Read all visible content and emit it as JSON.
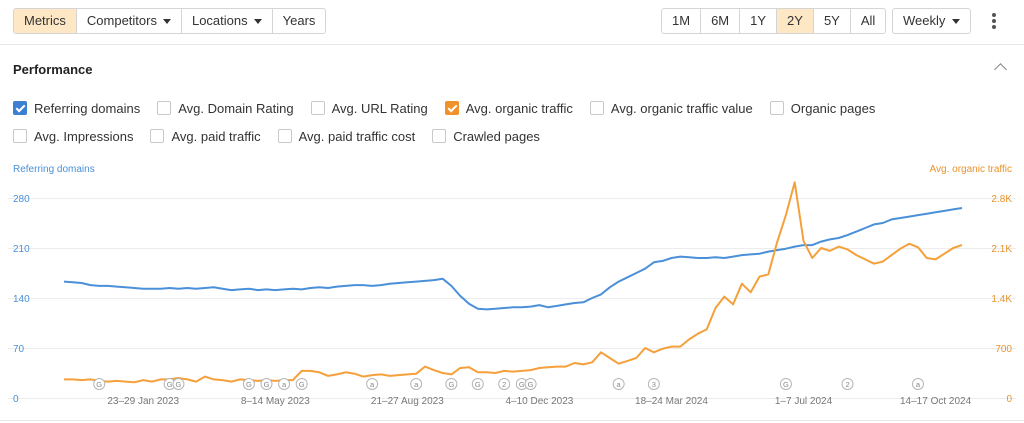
{
  "toolbar": {
    "view_tabs": [
      "Metrics",
      "Competitors",
      "Locations",
      "Years"
    ],
    "active_view": "Metrics",
    "range_tabs": [
      "1M",
      "6M",
      "1Y",
      "2Y",
      "5Y",
      "All"
    ],
    "active_range": "2Y",
    "interval": "Weekly"
  },
  "panel": {
    "title": "Performance",
    "checkboxes_row1": [
      {
        "label": "Referring domains",
        "checked": true,
        "color": "#3d7fd0"
      },
      {
        "label": "Avg. Domain Rating",
        "checked": false
      },
      {
        "label": "Avg. URL Rating",
        "checked": false
      },
      {
        "label": "Avg. organic traffic",
        "checked": true,
        "color": "#f0922b"
      },
      {
        "label": "Avg. organic traffic value",
        "checked": false
      },
      {
        "label": "Organic pages",
        "checked": false
      }
    ],
    "checkboxes_row2": [
      {
        "label": "Avg. Impressions",
        "checked": false
      },
      {
        "label": "Avg. paid traffic",
        "checked": false
      },
      {
        "label": "Avg. paid traffic cost",
        "checked": false
      },
      {
        "label": "Crawled pages",
        "checked": false
      }
    ]
  },
  "colors": {
    "blue": "#4a90d9",
    "orange": "#f5a03a",
    "grid": "#ececec",
    "axis_blue": "#4a90d9",
    "axis_orange": "#e8922c"
  },
  "chart_data": {
    "type": "line",
    "left_axis_label": "Referring domains",
    "right_axis_label": "Avg. organic traffic",
    "left_ticks": [
      "0",
      "70",
      "140",
      "210",
      "280"
    ],
    "right_ticks": [
      "0",
      "700",
      "1.4K",
      "2.1K",
      "2.8K"
    ],
    "left_ylim": [
      0,
      280
    ],
    "right_ylim": [
      0,
      2800
    ],
    "x_labels": [
      "23–29 Jan 2023",
      "8–14 May 2023",
      "21–27 Aug 2023",
      "4–10 Dec 2023",
      "18–24 Mar 2024",
      "1–7 Jul 2024",
      "14–17 Oct 2024"
    ],
    "x_label_weeks": [
      9,
      24,
      39,
      54,
      69,
      84,
      99
    ],
    "weeks": 103,
    "series": [
      {
        "name": "Referring domains",
        "axis": "left",
        "values": [
          163,
          162,
          161,
          158,
          157,
          157,
          156,
          155,
          154,
          153,
          153,
          153,
          154,
          153,
          154,
          153,
          154,
          155,
          153,
          151,
          152,
          153,
          151,
          152,
          151,
          152,
          153,
          152,
          154,
          155,
          154,
          156,
          157,
          158,
          158,
          157,
          158,
          160,
          161,
          162,
          163,
          164,
          165,
          167,
          157,
          143,
          132,
          125,
          124,
          125,
          126,
          127,
          127,
          128,
          130,
          127,
          129,
          131,
          133,
          134,
          140,
          145,
          155,
          163,
          169,
          175,
          181,
          190,
          192,
          196,
          198,
          197,
          196,
          196,
          197,
          196,
          198,
          200,
          201,
          202,
          205,
          207,
          209,
          212,
          214,
          214,
          219,
          222,
          224,
          228,
          233,
          238,
          243,
          245,
          250,
          252,
          254,
          256,
          258,
          260,
          262,
          264,
          266
        ]
      },
      {
        "name": "Avg. organic traffic",
        "axis": "right",
        "values": [
          260,
          260,
          250,
          260,
          240,
          230,
          240,
          230,
          220,
          250,
          230,
          260,
          260,
          280,
          260,
          230,
          300,
          260,
          250,
          230,
          260,
          250,
          240,
          250,
          240,
          250,
          250,
          380,
          380,
          360,
          310,
          330,
          360,
          340,
          300,
          320,
          330,
          310,
          320,
          330,
          340,
          440,
          390,
          350,
          330,
          420,
          430,
          360,
          360,
          350,
          380,
          370,
          380,
          390,
          420,
          430,
          440,
          440,
          490,
          470,
          500,
          640,
          560,
          480,
          520,
          560,
          700,
          640,
          690,
          720,
          720,
          820,
          900,
          960,
          1260,
          1420,
          1310,
          1600,
          1480,
          1700,
          1730,
          2180,
          2560,
          3020,
          2200,
          1960,
          2100,
          2060,
          2120,
          2080,
          2000,
          1940,
          1880,
          1910,
          2000,
          2090,
          2160,
          2110,
          1960,
          1940,
          2020,
          2100,
          2140
        ]
      }
    ],
    "annotation_markers": [
      {
        "label": "G",
        "week": 4
      },
      {
        "label": "G",
        "week": 12
      },
      {
        "label": "G",
        "week": 13
      },
      {
        "label": "G",
        "week": 21
      },
      {
        "label": "G",
        "week": 23
      },
      {
        "label": "a",
        "week": 25
      },
      {
        "label": "G",
        "week": 27
      },
      {
        "label": "a",
        "week": 35
      },
      {
        "label": "a",
        "week": 40
      },
      {
        "label": "G",
        "week": 44
      },
      {
        "label": "G",
        "week": 47
      },
      {
        "label": "2",
        "week": 50
      },
      {
        "label": "G",
        "week": 52
      },
      {
        "label": "G",
        "week": 53
      },
      {
        "label": "a",
        "week": 63
      },
      {
        "label": "3",
        "week": 67
      },
      {
        "label": "G",
        "week": 82
      },
      {
        "label": "2",
        "week": 89
      },
      {
        "label": "a",
        "week": 97
      }
    ]
  }
}
